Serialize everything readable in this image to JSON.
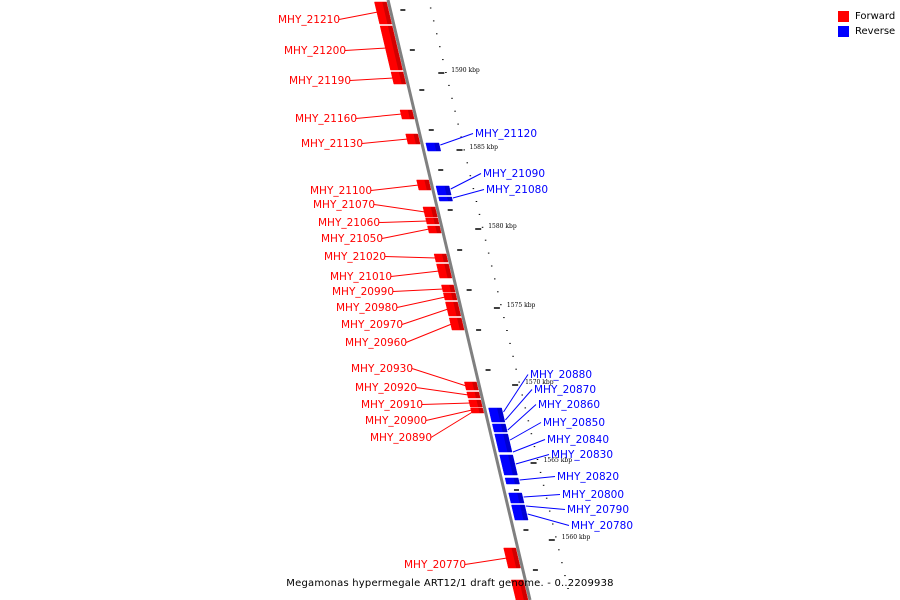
{
  "caption": "Megamonas hypermegale ART12/1 draft genome. - 0..2209938",
  "legend": [
    {
      "label": "Forward",
      "color": "#ff0000"
    },
    {
      "label": "Reverse",
      "color": "#0000ff"
    }
  ],
  "colors": {
    "forward": "#ff0000",
    "reverse": "#0000ff",
    "axis": "#808080"
  },
  "scale_labels": [
    "1590 kbp",
    "1585 kbp",
    "1580 kbp",
    "1575 kbp",
    "1570 kbp",
    "1565 kbp",
    "1560 kbp"
  ],
  "forward_genes": [
    "MHY_21210",
    "MHY_21200",
    "MHY_21190",
    "MHY_21160",
    "MHY_21130",
    "MHY_21100",
    "MHY_21070",
    "MHY_21060",
    "MHY_21050",
    "MHY_21020",
    "MHY_21010",
    "MHY_20990",
    "MHY_20980",
    "MHY_20970",
    "MHY_20960",
    "MHY_20930",
    "MHY_20920",
    "MHY_20910",
    "MHY_20900",
    "MHY_20890",
    "MHY_20770"
  ],
  "reverse_genes": [
    "MHY_21120",
    "MHY_21090",
    "MHY_21080",
    "MHY_20880",
    "MHY_20870",
    "MHY_20860",
    "MHY_20850",
    "MHY_20840",
    "MHY_20830",
    "MHY_20820",
    "MHY_20800",
    "MHY_20790",
    "MHY_20780"
  ]
}
